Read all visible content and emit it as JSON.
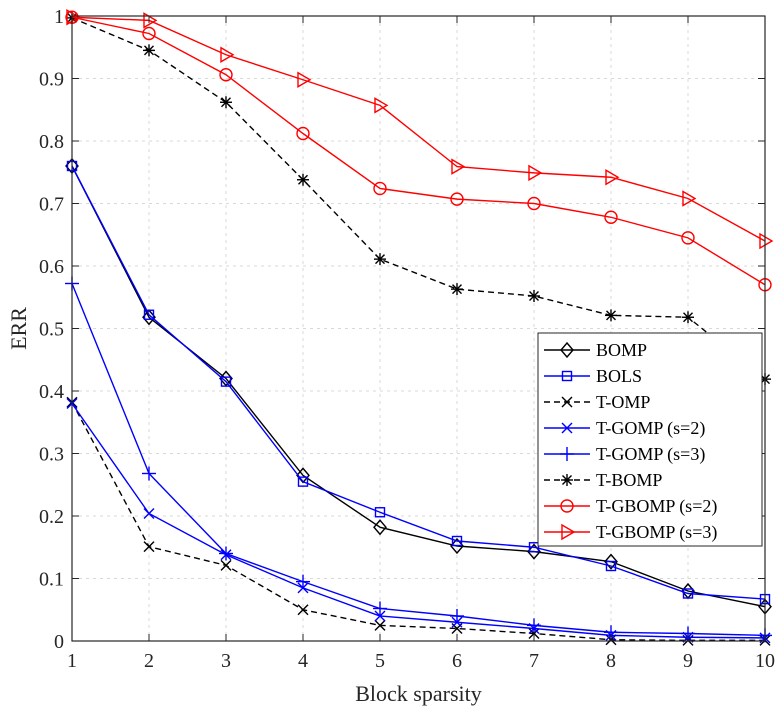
{
  "chart_data": {
    "type": "line",
    "title": "",
    "xlabel": "Block sparsity",
    "ylabel": "ERR",
    "x": [
      1,
      2,
      3,
      4,
      5,
      6,
      7,
      8,
      9,
      10
    ],
    "xlim": [
      1,
      10
    ],
    "ylim": [
      0,
      1
    ],
    "xticks": [
      "1",
      "2",
      "3",
      "4",
      "5",
      "6",
      "7",
      "8",
      "9",
      "10"
    ],
    "yticks": [
      "0",
      "0.1",
      "0.2",
      "0.3",
      "0.4",
      "0.5",
      "0.6",
      "0.7",
      "0.8",
      "0.9",
      "1"
    ],
    "grid": true,
    "legend_position": "right",
    "series": [
      {
        "name": "BOMP",
        "color": "#000000",
        "marker": "diamond",
        "dash": "solid",
        "values": [
          0.76,
          0.518,
          0.42,
          0.265,
          0.182,
          0.152,
          0.143,
          0.127,
          0.08,
          0.055
        ]
      },
      {
        "name": "BOLS",
        "color": "#0000ff",
        "marker": "square",
        "dash": "solid",
        "values": [
          0.76,
          0.522,
          0.415,
          0.255,
          0.206,
          0.16,
          0.15,
          0.12,
          0.076,
          0.067
        ]
      },
      {
        "name": "T-OMP",
        "color": "#000000",
        "marker": "x",
        "dash": "dashed",
        "values": [
          0.382,
          0.151,
          0.121,
          0.05,
          0.025,
          0.02,
          0.012,
          0.002,
          0.001,
          0.001
        ]
      },
      {
        "name": "T-GOMP (s=2)",
        "color": "#0000ff",
        "marker": "x",
        "dash": "solid",
        "values": [
          0.38,
          0.204,
          0.138,
          0.085,
          0.04,
          0.03,
          0.02,
          0.009,
          0.006,
          0.005
        ]
      },
      {
        "name": "T-GOMP (s=3)",
        "color": "#0000ff",
        "marker": "plus",
        "dash": "solid",
        "values": [
          0.572,
          0.268,
          0.14,
          0.095,
          0.052,
          0.04,
          0.025,
          0.014,
          0.012,
          0.009
        ]
      },
      {
        "name": "T-BOMP",
        "color": "#000000",
        "marker": "asterisk",
        "dash": "dashed",
        "values": [
          0.997,
          0.945,
          0.862,
          0.738,
          0.611,
          0.563,
          0.552,
          0.521,
          0.518,
          0.419
        ]
      },
      {
        "name": "T-GBOMP (s=2)",
        "color": "#ff0000",
        "marker": "circle",
        "dash": "solid",
        "values": [
          0.998,
          0.972,
          0.906,
          0.812,
          0.724,
          0.707,
          0.7,
          0.678,
          0.645,
          0.57
        ]
      },
      {
        "name": "T-GBOMP (s=3)",
        "color": "#ff0000",
        "marker": "triangle-right",
        "dash": "solid",
        "values": [
          0.998,
          0.993,
          0.938,
          0.898,
          0.857,
          0.759,
          0.749,
          0.742,
          0.708,
          0.64
        ]
      }
    ]
  }
}
